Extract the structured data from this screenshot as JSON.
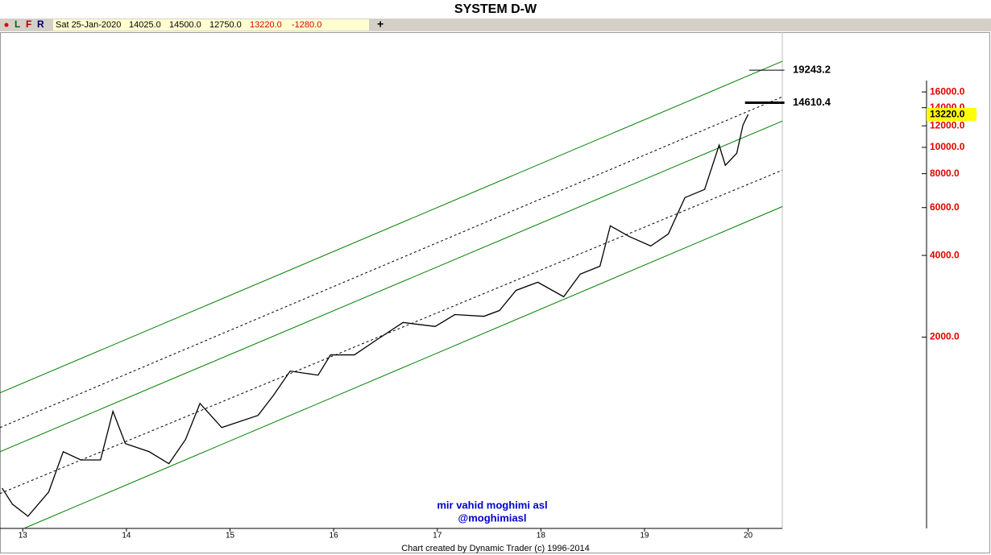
{
  "chart_data": {
    "type": "line",
    "title": "SYSTEM D-W",
    "toolbar": {
      "letters": [
        "L",
        "F",
        "R"
      ],
      "date": "Sat 25-Jan-2020",
      "open": "14025.0",
      "high": "14500.0",
      "low": "12750.0",
      "close": "13220.0",
      "change": "-1280.0",
      "plus": "+"
    },
    "x": [
      12.8,
      12.9,
      13.05,
      13.25,
      13.39,
      13.56,
      13.75,
      13.87,
      13.99,
      14.22,
      14.41,
      14.57,
      14.71,
      14.92,
      15.27,
      15.42,
      15.58,
      15.85,
      15.97,
      16.2,
      16.43,
      16.67,
      16.98,
      17.17,
      17.45,
      17.6,
      17.76,
      17.97,
      18.22,
      18.38,
      18.57,
      18.67,
      18.85,
      19.06,
      19.23,
      19.39,
      19.58,
      19.72,
      19.78,
      19.89,
      19.95,
      20.0
    ],
    "series": [
      {
        "color": "#000000",
        "values": [
          556,
          485,
          438,
          538,
          757,
          706,
          706,
          1066,
          811,
          757,
          684,
          839,
          1140,
          929,
          1030,
          1222,
          1500,
          1449,
          1721,
          1721,
          1972,
          2265,
          2189,
          2422,
          2387,
          2506,
          2974,
          3186,
          2818,
          3414,
          3650,
          5140,
          4700,
          4333,
          4800,
          6530,
          6998,
          10190,
          8590,
          9510,
          12080,
          13220
        ]
      }
    ],
    "channels": [
      {
        "x": [
          12.78,
          20.33
        ],
        "values": [
          1247,
          20750
        ],
        "color": "#008000",
        "dashed": false
      },
      {
        "x": [
          12.78,
          20.33
        ],
        "values": [
          929,
          15350
        ],
        "color": "#000000",
        "dashed": true
      },
      {
        "x": [
          12.78,
          20.33
        ],
        "values": [
          757,
          12500
        ],
        "color": "#008000",
        "dashed": false
      },
      {
        "x": [
          12.78,
          20.33
        ],
        "values": [
          531,
          8240
        ],
        "color": "#000000",
        "dashed": true
      },
      {
        "x": [
          13.01,
          20.33
        ],
        "values": [
          395,
          6050
        ],
        "color": "#008000",
        "dashed": false
      }
    ],
    "levels": [
      {
        "value": 19243.2,
        "label": "19243.2",
        "x": [
          20.01,
          20.35
        ],
        "thick": false
      },
      {
        "value": 14610.4,
        "label": "14610.4",
        "x": [
          19.97,
          20.35
        ],
        "thick": true
      }
    ],
    "price_label": {
      "value": 13220,
      "label": "13220.0"
    },
    "log_scale": true,
    "xlim": [
      12.78,
      20.33
    ],
    "ylim": [
      395,
      26550
    ],
    "xticks": [
      13,
      14,
      15,
      16,
      17,
      18,
      19,
      20
    ],
    "yticks": [
      {
        "value": 2000,
        "label": "2000.0"
      },
      {
        "value": 4000,
        "label": "4000.0"
      },
      {
        "value": 6000,
        "label": "6000.0"
      },
      {
        "value": 8000,
        "label": "8000.0"
      },
      {
        "value": 10000,
        "label": "10000.0"
      },
      {
        "value": 12000,
        "label": "12000.0"
      },
      {
        "value": 14000,
        "label": "14000.0"
      },
      {
        "value": 16000,
        "label": "16000.0"
      }
    ],
    "watermark": [
      "mir vahid moghimi asl",
      "@moghimiasl"
    ],
    "footer": "Chart created by Dynamic Trader  (c) 1996-2014"
  }
}
